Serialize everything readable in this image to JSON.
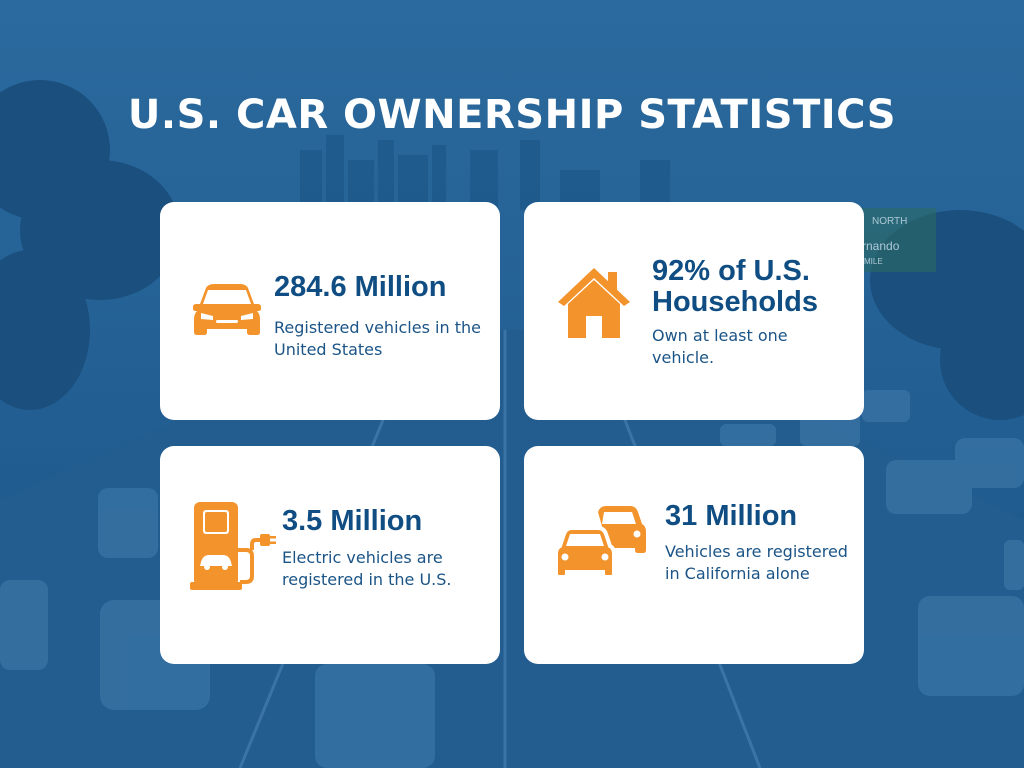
{
  "title": "U.S. CAR OWNERSHIP STATISTICS",
  "background": {
    "description_icon": "highway-traffic-photo",
    "sign_text_1": "NORTH",
    "sign_text_2": "rnando",
    "sign_text_3": "MILE"
  },
  "colors": {
    "overlay": "#1d5f94",
    "card": "#ffffff",
    "accent": "#f3932b",
    "heading": "#0f4d82",
    "text": "#1b5486"
  },
  "cards": [
    {
      "icon": "car-icon",
      "heading": "284.6 Million",
      "description": "Registered vehicles in the United States"
    },
    {
      "icon": "house-icon",
      "heading": "92% of U.S. Households",
      "description": "Own at least one vehicle."
    },
    {
      "icon": "ev-charger-icon",
      "heading": "3.5 Million",
      "description": "Electric vehicles are registered in the U.S."
    },
    {
      "icon": "two-cars-icon",
      "heading": "31 Million",
      "description": "Vehicles are registered in California alone"
    }
  ]
}
